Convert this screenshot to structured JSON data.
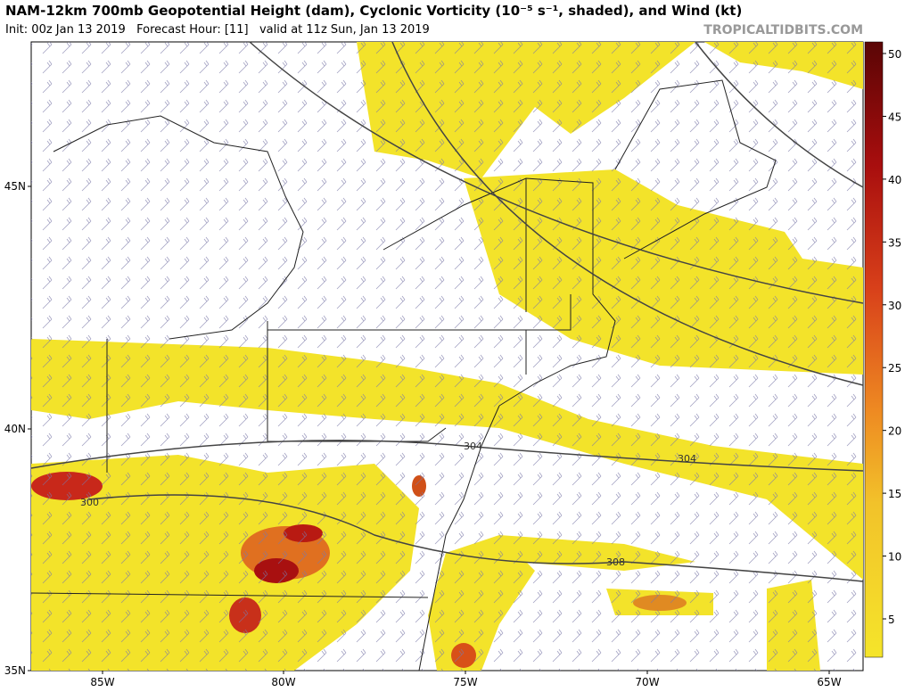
{
  "header": {
    "title": "NAM-12km 700mb Geopotential Height (dam), Cyclonic Vorticity (10⁻⁵ s⁻¹, shaded), and Wind (kt)",
    "subtitle": "Init: 00z Jan 13 2019   Forecast Hour: [11]   valid at 11z Sun, Jan 13 2019",
    "site": "TROPICALTIDBITS.COM"
  },
  "colorbar": {
    "ticks": [
      5,
      10,
      15,
      20,
      25,
      30,
      35,
      40,
      45,
      50
    ]
  },
  "axes": {
    "lon_labels": [
      "85W",
      "80W",
      "75W",
      "70W",
      "65W"
    ],
    "lat_labels": [
      "45N",
      "40N",
      "35N"
    ]
  },
  "contour_labels": [
    "300",
    "304",
    "304",
    "308"
  ]
}
